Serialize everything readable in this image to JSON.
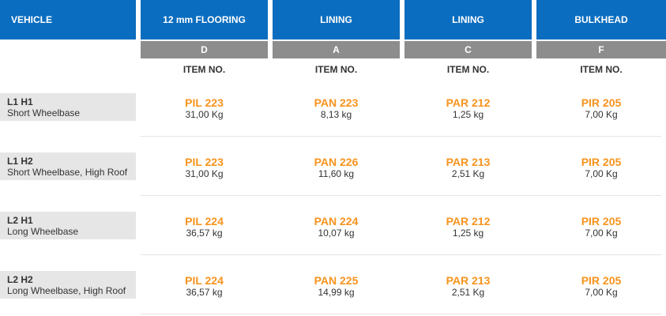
{
  "header": {
    "vehicle": "VEHICLE",
    "columns": [
      {
        "title": "12 mm FLOORING",
        "letter": "D",
        "item_label": "ITEM NO."
      },
      {
        "title": "LINING",
        "letter": "A",
        "item_label": "ITEM NO."
      },
      {
        "title": "LINING",
        "letter": "C",
        "item_label": "ITEM NO."
      },
      {
        "title": "BULKHEAD",
        "letter": "F",
        "item_label": "ITEM NO."
      }
    ]
  },
  "rows": [
    {
      "code": "L1 H1",
      "desc": "Short Wheelbase",
      "items": [
        {
          "item": "PIL 223",
          "weight": "31,00 Kg"
        },
        {
          "item": "PAN 223",
          "weight": "8,13 kg"
        },
        {
          "item": "PAR 212",
          "weight": "1,25 kg"
        },
        {
          "item": "PIR 205",
          "weight": "7,00 Kg"
        }
      ]
    },
    {
      "code": "L1 H2",
      "desc": "Short Wheelbase, High Roof",
      "items": [
        {
          "item": "PIL 223",
          "weight": "31,00 Kg"
        },
        {
          "item": "PAN 226",
          "weight": "11,60 kg"
        },
        {
          "item": "PAR 213",
          "weight": "2,51 Kg"
        },
        {
          "item": "PIR 205",
          "weight": "7,00 Kg"
        }
      ]
    },
    {
      "code": "L2 H1",
      "desc": "Long Wheelbase",
      "items": [
        {
          "item": "PIL 224",
          "weight": "36,57 kg"
        },
        {
          "item": "PAN 224",
          "weight": "10,07 kg"
        },
        {
          "item": "PAR 212",
          "weight": "1,25 kg"
        },
        {
          "item": "PIR 205",
          "weight": "7,00 Kg"
        }
      ]
    },
    {
      "code": "L2 H2",
      "desc": "Long Wheelbase, High Roof",
      "items": [
        {
          "item": "PIL 224",
          "weight": "36,57 kg"
        },
        {
          "item": "PAN 225",
          "weight": "14,99 kg"
        },
        {
          "item": "PAR 213",
          "weight": "2,51 Kg"
        },
        {
          "item": "PIR 205",
          "weight": "7,00 Kg"
        }
      ]
    }
  ],
  "colors": {
    "header_blue": "#0b6dbf",
    "letter_gray": "#8d8d8d",
    "item_orange": "#f7931d",
    "vehicle_bg": "#e6e6e6"
  }
}
